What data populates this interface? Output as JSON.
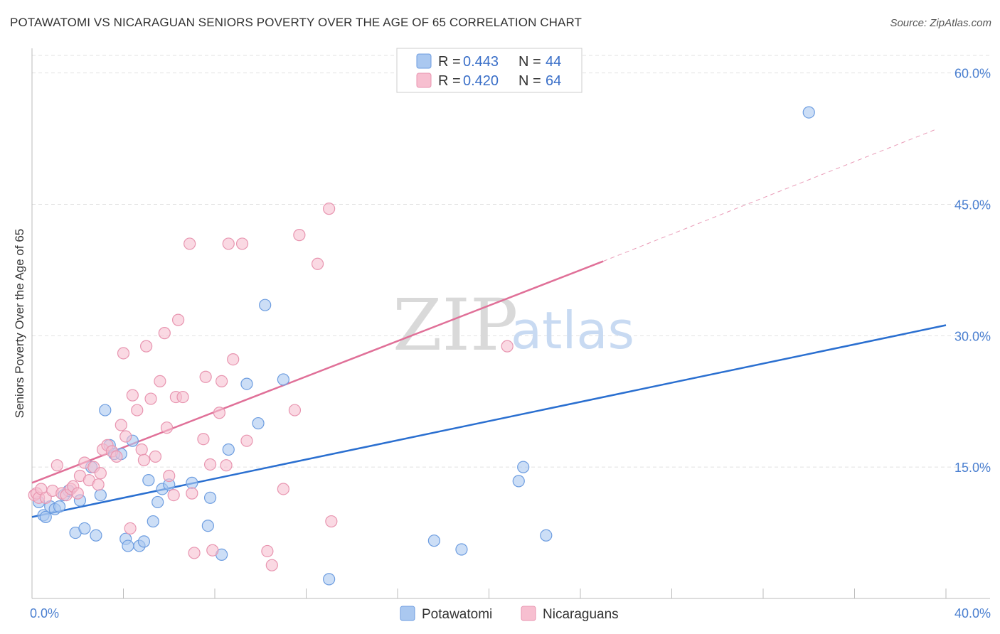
{
  "title": "POTAWATOMI VS NICARAGUAN SENIORS POVERTY OVER THE AGE OF 65 CORRELATION CHART",
  "source": "Source: ZipAtlas.com",
  "watermark": {
    "zip": "ZIP",
    "atlas": "atlas"
  },
  "colors": {
    "potawatomi_fill": "#aac8f0",
    "potawatomi_stroke": "#6d9de0",
    "potawatomi_line": "#2a6fd0",
    "nicaraguans_fill": "#f7bfd0",
    "nicaraguans_stroke": "#e895b0",
    "nicaraguans_line": "#e07098",
    "grid": "#e2e2e2"
  },
  "legend": {
    "rows": [
      {
        "r_label": "R = ",
        "r_value": "0.443",
        "n_label": "N = ",
        "n_value": "44"
      },
      {
        "r_label": "R = ",
        "r_value": "0.420",
        "n_label": "N = ",
        "n_value": "64"
      }
    ]
  },
  "chart_data": {
    "type": "scatter",
    "title": "POTAWATOMI VS NICARAGUAN SENIORS POVERTY OVER THE AGE OF 65 CORRELATION CHART",
    "xlabel": "",
    "ylabel": "Seniors Poverty Over the Age of 65",
    "xlim": [
      0,
      40
    ],
    "ylim": [
      0,
      62
    ],
    "x_tick_labels": [
      "0.0%",
      "40.0%"
    ],
    "y_ticks": [
      15,
      30,
      45,
      60
    ],
    "y_tick_labels": [
      "15.0%",
      "30.0%",
      "45.0%",
      "60.0%"
    ],
    "grid": true,
    "legend_position": "top-center",
    "series": [
      {
        "name": "Potawatomi",
        "color": "#aac8f0",
        "points": [
          [
            0.3,
            11.0
          ],
          [
            0.5,
            9.5
          ],
          [
            0.6,
            9.3
          ],
          [
            0.8,
            10.5
          ],
          [
            1.0,
            10.2
          ],
          [
            1.2,
            10.5
          ],
          [
            1.4,
            11.8
          ],
          [
            1.6,
            12.3
          ],
          [
            1.9,
            7.5
          ],
          [
            2.1,
            11.2
          ],
          [
            2.3,
            8.0
          ],
          [
            2.6,
            15.0
          ],
          [
            2.8,
            7.2
          ],
          [
            3.0,
            11.8
          ],
          [
            3.2,
            21.5
          ],
          [
            3.4,
            17.5
          ],
          [
            3.6,
            16.5
          ],
          [
            3.9,
            16.5
          ],
          [
            4.1,
            6.8
          ],
          [
            4.2,
            6.0
          ],
          [
            4.4,
            18.0
          ],
          [
            4.7,
            6.0
          ],
          [
            4.9,
            6.5
          ],
          [
            5.1,
            13.5
          ],
          [
            5.3,
            8.8
          ],
          [
            5.5,
            11.0
          ],
          [
            5.7,
            12.5
          ],
          [
            6.0,
            13.0
          ],
          [
            7.0,
            13.2
          ],
          [
            7.7,
            8.3
          ],
          [
            7.8,
            11.5
          ],
          [
            8.3,
            5.0
          ],
          [
            8.6,
            17.0
          ],
          [
            9.4,
            24.5
          ],
          [
            9.9,
            20.0
          ],
          [
            10.2,
            33.5
          ],
          [
            11.0,
            25.0
          ],
          [
            13.0,
            2.2
          ],
          [
            17.6,
            6.6
          ],
          [
            18.8,
            5.6
          ],
          [
            21.3,
            13.4
          ],
          [
            21.5,
            15.0
          ],
          [
            22.5,
            7.2
          ],
          [
            34.0,
            55.5
          ]
        ]
      },
      {
        "name": "Nicaraguans",
        "color": "#f7bfd0",
        "points": [
          [
            0.1,
            11.8
          ],
          [
            0.2,
            12.0
          ],
          [
            0.3,
            11.5
          ],
          [
            0.4,
            12.5
          ],
          [
            0.6,
            11.5
          ],
          [
            0.9,
            12.3
          ],
          [
            1.1,
            15.2
          ],
          [
            1.3,
            12.0
          ],
          [
            1.5,
            11.8
          ],
          [
            1.7,
            12.5
          ],
          [
            1.8,
            12.8
          ],
          [
            2.0,
            12.0
          ],
          [
            2.1,
            14.0
          ],
          [
            2.3,
            15.5
          ],
          [
            2.5,
            13.5
          ],
          [
            2.7,
            15.0
          ],
          [
            2.9,
            13.0
          ],
          [
            3.0,
            14.3
          ],
          [
            3.1,
            17.0
          ],
          [
            3.3,
            17.5
          ],
          [
            3.5,
            16.8
          ],
          [
            3.7,
            16.2
          ],
          [
            3.9,
            19.8
          ],
          [
            4.0,
            28.0
          ],
          [
            4.1,
            18.5
          ],
          [
            4.3,
            8.0
          ],
          [
            4.4,
            23.2
          ],
          [
            4.6,
            21.5
          ],
          [
            4.8,
            17.0
          ],
          [
            4.9,
            15.8
          ],
          [
            5.0,
            28.8
          ],
          [
            5.2,
            22.8
          ],
          [
            5.4,
            16.2
          ],
          [
            5.6,
            24.8
          ],
          [
            5.8,
            30.3
          ],
          [
            5.9,
            19.5
          ],
          [
            6.0,
            14.0
          ],
          [
            6.2,
            11.8
          ],
          [
            6.3,
            23.0
          ],
          [
            6.4,
            31.8
          ],
          [
            6.6,
            23.0
          ],
          [
            6.9,
            40.5
          ],
          [
            7.0,
            12.0
          ],
          [
            7.1,
            5.2
          ],
          [
            7.5,
            18.2
          ],
          [
            7.6,
            25.3
          ],
          [
            7.8,
            15.3
          ],
          [
            7.9,
            5.5
          ],
          [
            8.2,
            21.2
          ],
          [
            8.3,
            24.8
          ],
          [
            8.5,
            15.2
          ],
          [
            8.6,
            40.5
          ],
          [
            8.8,
            27.3
          ],
          [
            9.2,
            40.5
          ],
          [
            9.4,
            18.0
          ],
          [
            10.3,
            5.4
          ],
          [
            10.5,
            3.8
          ],
          [
            11.0,
            12.5
          ],
          [
            11.5,
            21.5
          ],
          [
            11.7,
            41.5
          ],
          [
            12.5,
            38.2
          ],
          [
            13.0,
            44.5
          ],
          [
            13.1,
            8.8
          ],
          [
            20.8,
            28.8
          ]
        ]
      }
    ],
    "trend_lines": [
      {
        "series": "Potawatomi",
        "x": [
          0,
          40
        ],
        "y": [
          9.3,
          31.2
        ]
      },
      {
        "series": "Nicaraguans",
        "x": [
          0,
          25
        ],
        "y": [
          13.2,
          38.5
        ],
        "dashed_extension_to": [
          39.5,
          53.5
        ]
      }
    ]
  }
}
